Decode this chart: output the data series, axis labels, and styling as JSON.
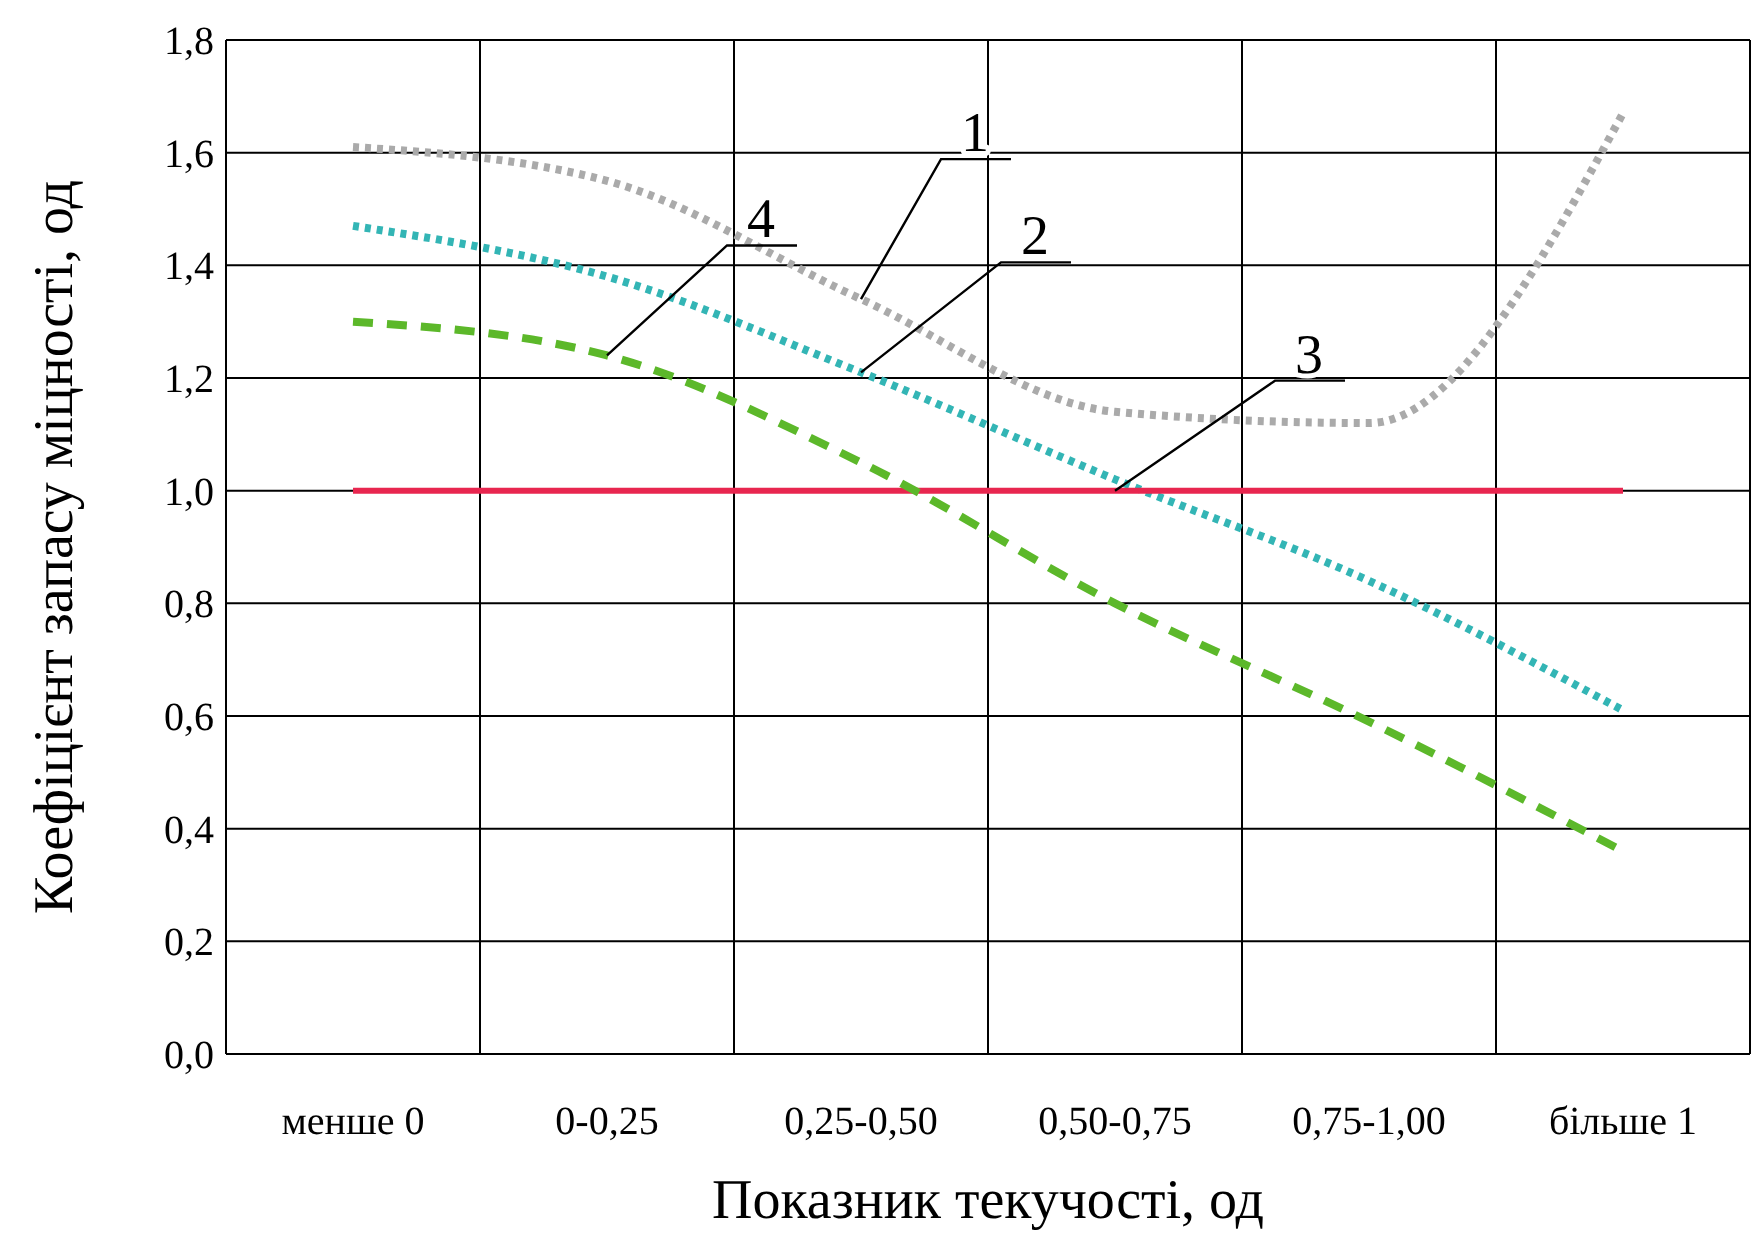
{
  "chart_data": {
    "type": "line",
    "xlabel": "Показник текучості, од",
    "ylabel": "Коефіцієнт запасу міцності, од",
    "categories": [
      "менше 0",
      "0-0,25",
      "0,25-0,50",
      "0,50-0,75",
      "0,75-1,00",
      "більше 1"
    ],
    "ylim": [
      0,
      1.8
    ],
    "yticks": [
      {
        "value": 0,
        "label": "0,0"
      },
      {
        "value": 0.2,
        "label": "0,2"
      },
      {
        "value": 0.4,
        "label": "0,4"
      },
      {
        "value": 0.6,
        "label": "0,6"
      },
      {
        "value": 0.8,
        "label": "0,8"
      },
      {
        "value": 1,
        "label": "1,0"
      },
      {
        "value": 1.2,
        "label": "1,2"
      },
      {
        "value": 1.4,
        "label": "1,4"
      },
      {
        "value": 1.6,
        "label": "1,6"
      },
      {
        "value": 1.8,
        "label": "1,8"
      }
    ],
    "grid": true,
    "marker": "none",
    "series": [
      {
        "color": "#aaaaaa",
        "line_style": "dotted",
        "values": [
          1.61,
          1.55,
          1.34,
          1.14,
          1.12,
          1.67
        ]
      },
      {
        "color": "#33b5b5",
        "line_style": "dotted",
        "values": [
          1.47,
          1.38,
          1.21,
          1.02,
          0.84,
          0.61
        ]
      },
      {
        "color": "#e8264f",
        "line_style": "solid",
        "values": [
          1.0,
          1.0,
          1.0,
          1.0,
          1.0,
          1.0
        ]
      },
      {
        "color": "#5cb82a",
        "line_style": "dashed",
        "values": [
          1.3,
          1.24,
          1.05,
          0.8,
          0.59,
          0.36
        ]
      }
    ],
    "annotations": [
      {
        "text": "1",
        "x": "0,25-0,50",
        "y": 1.34
      },
      {
        "text": "2",
        "x": "0,25-0,50",
        "y": 1.21
      },
      {
        "text": "3",
        "x": "0,50-0,75",
        "y": 1.0
      },
      {
        "text": "4",
        "x": "0-0,25",
        "y": 1.24
      }
    ]
  }
}
